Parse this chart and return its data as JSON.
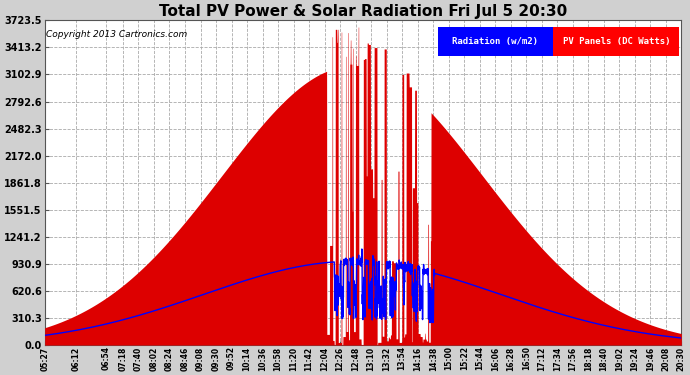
{
  "title": "Total PV Power & Solar Radiation Fri Jul 5 20:30",
  "copyright": "Copyright 2013 Cartronics.com",
  "legend_radiation": "Radiation (w/m2)",
  "legend_pv": "PV Panels (DC Watts)",
  "fig_bg_color": "#d0d0d0",
  "plot_bg_color": "#ffffff",
  "radiation_color": "#0000ff",
  "pv_color": "#dd0000",
  "ymax": 3723.5,
  "ymin": 0.0,
  "ytick_values": [
    0.0,
    310.3,
    620.6,
    930.9,
    1241.2,
    1551.5,
    1861.8,
    2172.0,
    2482.3,
    2792.6,
    3102.9,
    3413.2,
    3723.5
  ],
  "ytick_labels": [
    "0.0",
    "310.3",
    "620.6",
    "930.9",
    "1241.2",
    "1551.5",
    "1861.8",
    "2172.0",
    "2482.3",
    "2792.6",
    "3102.9",
    "3413.2",
    "3723.5"
  ],
  "xtick_labels": [
    "05:27",
    "06:12",
    "06:54",
    "07:18",
    "07:40",
    "08:02",
    "08:24",
    "08:46",
    "09:08",
    "09:30",
    "09:52",
    "10:14",
    "10:36",
    "10:58",
    "11:20",
    "11:42",
    "12:04",
    "12:26",
    "12:48",
    "13:10",
    "13:32",
    "13:54",
    "14:16",
    "14:38",
    "15:00",
    "15:22",
    "15:44",
    "16:06",
    "16:28",
    "16:50",
    "17:12",
    "17:34",
    "17:56",
    "18:18",
    "18:40",
    "19:02",
    "19:24",
    "19:46",
    "20:08",
    "20:30"
  ],
  "noon_minutes": 763,
  "pv_peak": 3200,
  "pv_sigma": 185,
  "rad_peak": 960,
  "rad_sigma": 210
}
